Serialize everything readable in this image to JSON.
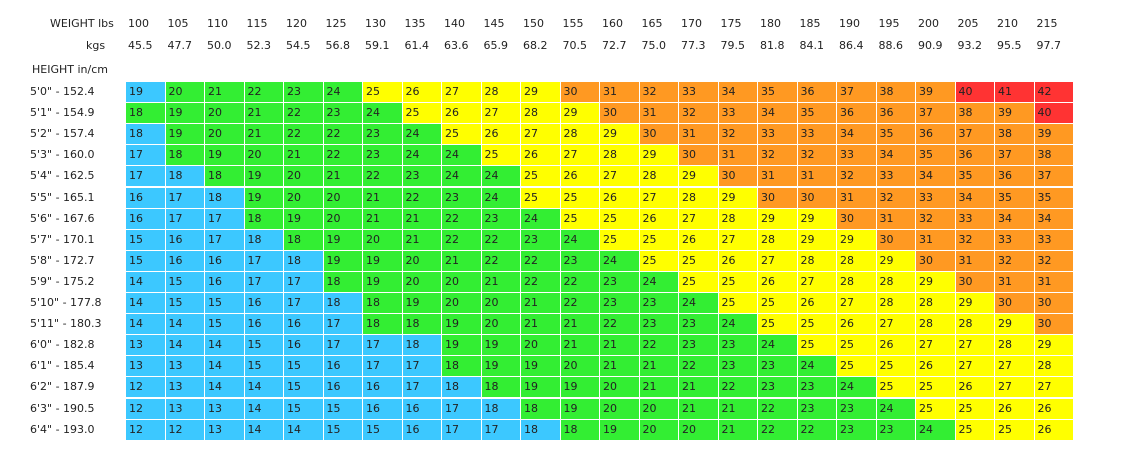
{
  "header": {
    "weight_label": "WEIGHT lbs",
    "kgs_label": "kgs",
    "height_label": "HEIGHT in/cm"
  },
  "colors": {
    "blue": "#3cc8ff",
    "green": "#33ee33",
    "yellow": "#ffff00",
    "orange": "#ff9922",
    "red": "#ff3333"
  },
  "chart_data": {
    "type": "table",
    "lbs": [
      "100",
      "105",
      "110",
      "115",
      "120",
      "125",
      "130",
      "135",
      "140",
      "145",
      "150",
      "155",
      "160",
      "165",
      "170",
      "175",
      "180",
      "185",
      "190",
      "195",
      "200",
      "205",
      "210",
      "215"
    ],
    "kgs": [
      "45.5",
      "47.7",
      "50.0",
      "52.3",
      "54.5",
      "56.8",
      "59.1",
      "61.4",
      "63.6",
      "65.9",
      "68.2",
      "70.5",
      "72.7",
      "75.0",
      "77.3",
      "79.5",
      "81.8",
      "84.1",
      "86.4",
      "88.6",
      "90.9",
      "93.2",
      "95.5",
      "97.7"
    ],
    "heights": [
      "5'0\" - 152.4",
      "5'1\" - 154.9",
      "5'2\" - 157.4",
      "5'3\" - 160.0",
      "5'4\" - 162.5",
      "5'5\" - 165.1",
      "5'6\" - 167.6",
      "5'7\" - 170.1",
      "5'8\" - 172.7",
      "5'9\" - 175.2",
      "5'10\" - 177.8",
      "5'11\" - 180.3",
      "6'0\" - 182.8",
      "6'1\" - 185.4",
      "6'2\" - 187.9",
      "6'3\" - 190.5",
      "6'4\" - 193.0"
    ],
    "values": [
      [
        19,
        20,
        21,
        22,
        23,
        24,
        25,
        26,
        27,
        28,
        29,
        30,
        31,
        32,
        33,
        34,
        35,
        36,
        37,
        38,
        39,
        40,
        41,
        42
      ],
      [
        18,
        19,
        20,
        21,
        22,
        23,
        24,
        25,
        26,
        27,
        28,
        29,
        30,
        31,
        32,
        33,
        34,
        35,
        36,
        36,
        37,
        38,
        39,
        40
      ],
      [
        18,
        19,
        20,
        21,
        22,
        22,
        23,
        24,
        25,
        26,
        27,
        28,
        29,
        30,
        31,
        32,
        33,
        33,
        34,
        35,
        36,
        37,
        38,
        39
      ],
      [
        17,
        18,
        19,
        20,
        21,
        22,
        23,
        24,
        24,
        25,
        26,
        27,
        28,
        29,
        30,
        31,
        32,
        32,
        33,
        34,
        35,
        36,
        37,
        38
      ],
      [
        17,
        18,
        18,
        19,
        20,
        21,
        22,
        23,
        24,
        24,
        25,
        26,
        27,
        28,
        29,
        30,
        31,
        31,
        32,
        33,
        34,
        35,
        36,
        37
      ],
      [
        16,
        17,
        18,
        19,
        20,
        20,
        21,
        22,
        23,
        24,
        25,
        25,
        26,
        27,
        28,
        29,
        30,
        30,
        31,
        32,
        33,
        34,
        35,
        35
      ],
      [
        16,
        17,
        17,
        18,
        19,
        20,
        21,
        21,
        22,
        23,
        24,
        25,
        25,
        26,
        27,
        28,
        29,
        29,
        30,
        31,
        32,
        33,
        34,
        34
      ],
      [
        15,
        16,
        17,
        18,
        18,
        19,
        20,
        21,
        22,
        22,
        23,
        24,
        25,
        25,
        26,
        27,
        28,
        29,
        29,
        30,
        31,
        32,
        33,
        33
      ],
      [
        15,
        16,
        16,
        17,
        18,
        19,
        19,
        20,
        21,
        22,
        22,
        23,
        24,
        25,
        25,
        26,
        27,
        28,
        28,
        29,
        30,
        31,
        32,
        32
      ],
      [
        14,
        15,
        16,
        17,
        17,
        18,
        19,
        20,
        20,
        21,
        22,
        22,
        23,
        24,
        25,
        25,
        26,
        27,
        28,
        28,
        29,
        30,
        31,
        31
      ],
      [
        14,
        15,
        15,
        16,
        17,
        18,
        18,
        19,
        20,
        20,
        21,
        22,
        23,
        23,
        24,
        25,
        25,
        26,
        27,
        28,
        28,
        29,
        30,
        30
      ],
      [
        14,
        14,
        15,
        16,
        16,
        17,
        18,
        18,
        19,
        20,
        21,
        21,
        22,
        23,
        23,
        24,
        25,
        25,
        26,
        27,
        28,
        28,
        29,
        30
      ],
      [
        13,
        14,
        14,
        15,
        16,
        17,
        17,
        18,
        19,
        19,
        20,
        21,
        21,
        22,
        23,
        23,
        24,
        25,
        25,
        26,
        27,
        27,
        28,
        29
      ],
      [
        13,
        13,
        14,
        15,
        15,
        16,
        17,
        17,
        18,
        19,
        19,
        20,
        21,
        21,
        22,
        23,
        23,
        24,
        25,
        25,
        26,
        27,
        27,
        28
      ],
      [
        12,
        13,
        14,
        14,
        15,
        16,
        16,
        17,
        18,
        18,
        19,
        19,
        20,
        21,
        21,
        22,
        23,
        23,
        24,
        25,
        25,
        26,
        27,
        27
      ],
      [
        12,
        13,
        13,
        14,
        15,
        15,
        16,
        16,
        17,
        18,
        18,
        19,
        20,
        20,
        21,
        21,
        22,
        23,
        23,
        24,
        25,
        25,
        26,
        26
      ],
      [
        12,
        12,
        13,
        14,
        14,
        15,
        15,
        16,
        17,
        17,
        18,
        18,
        19,
        20,
        20,
        21,
        22,
        22,
        23,
        23,
        24,
        25,
        25,
        26
      ]
    ],
    "color_classes": [
      [
        "blue",
        "green",
        "green",
        "green",
        "green",
        "green",
        "yellow",
        "yellow",
        "yellow",
        "yellow",
        "yellow",
        "orange",
        "orange",
        "orange",
        "orange",
        "orange",
        "orange",
        "orange",
        "orange",
        "orange",
        "orange",
        "red",
        "red",
        "red"
      ],
      [
        "green",
        "green",
        "green",
        "green",
        "green",
        "green",
        "green",
        "yellow",
        "yellow",
        "yellow",
        "yellow",
        "yellow",
        "orange",
        "orange",
        "orange",
        "orange",
        "orange",
        "orange",
        "orange",
        "orange",
        "orange",
        "orange",
        "orange",
        "red"
      ],
      [
        "blue",
        "green",
        "green",
        "green",
        "green",
        "green",
        "green",
        "green",
        "yellow",
        "yellow",
        "yellow",
        "yellow",
        "yellow",
        "orange",
        "orange",
        "orange",
        "orange",
        "orange",
        "orange",
        "orange",
        "orange",
        "orange",
        "orange",
        "orange"
      ],
      [
        "blue",
        "green",
        "green",
        "green",
        "green",
        "green",
        "green",
        "green",
        "green",
        "yellow",
        "yellow",
        "yellow",
        "yellow",
        "yellow",
        "orange",
        "orange",
        "orange",
        "orange",
        "orange",
        "orange",
        "orange",
        "orange",
        "orange",
        "orange"
      ],
      [
        "blue",
        "blue",
        "green",
        "green",
        "green",
        "green",
        "green",
        "green",
        "green",
        "green",
        "yellow",
        "yellow",
        "yellow",
        "yellow",
        "yellow",
        "orange",
        "orange",
        "orange",
        "orange",
        "orange",
        "orange",
        "orange",
        "orange",
        "orange"
      ],
      [
        "blue",
        "blue",
        "blue",
        "green",
        "green",
        "green",
        "green",
        "green",
        "green",
        "green",
        "yellow",
        "yellow",
        "yellow",
        "yellow",
        "yellow",
        "yellow",
        "orange",
        "orange",
        "orange",
        "orange",
        "orange",
        "orange",
        "orange",
        "orange"
      ],
      [
        "blue",
        "blue",
        "blue",
        "green",
        "green",
        "green",
        "green",
        "green",
        "green",
        "green",
        "green",
        "yellow",
        "yellow",
        "yellow",
        "yellow",
        "yellow",
        "yellow",
        "yellow",
        "orange",
        "orange",
        "orange",
        "orange",
        "orange",
        "orange"
      ],
      [
        "blue",
        "blue",
        "blue",
        "blue",
        "green",
        "green",
        "green",
        "green",
        "green",
        "green",
        "green",
        "green",
        "yellow",
        "yellow",
        "yellow",
        "yellow",
        "yellow",
        "yellow",
        "yellow",
        "orange",
        "orange",
        "orange",
        "orange",
        "orange"
      ],
      [
        "blue",
        "blue",
        "blue",
        "blue",
        "blue",
        "green",
        "green",
        "green",
        "green",
        "green",
        "green",
        "green",
        "green",
        "yellow",
        "yellow",
        "yellow",
        "yellow",
        "yellow",
        "yellow",
        "yellow",
        "orange",
        "orange",
        "orange",
        "orange"
      ],
      [
        "blue",
        "blue",
        "blue",
        "blue",
        "blue",
        "green",
        "green",
        "green",
        "green",
        "green",
        "green",
        "green",
        "green",
        "green",
        "yellow",
        "yellow",
        "yellow",
        "yellow",
        "yellow",
        "yellow",
        "yellow",
        "orange",
        "orange",
        "orange"
      ],
      [
        "blue",
        "blue",
        "blue",
        "blue",
        "blue",
        "blue",
        "green",
        "green",
        "green",
        "green",
        "green",
        "green",
        "green",
        "green",
        "green",
        "yellow",
        "yellow",
        "yellow",
        "yellow",
        "yellow",
        "yellow",
        "yellow",
        "orange",
        "orange"
      ],
      [
        "blue",
        "blue",
        "blue",
        "blue",
        "blue",
        "blue",
        "green",
        "green",
        "green",
        "green",
        "green",
        "green",
        "green",
        "green",
        "green",
        "green",
        "yellow",
        "yellow",
        "yellow",
        "yellow",
        "yellow",
        "yellow",
        "yellow",
        "orange"
      ],
      [
        "blue",
        "blue",
        "blue",
        "blue",
        "blue",
        "blue",
        "blue",
        "blue",
        "green",
        "green",
        "green",
        "green",
        "green",
        "green",
        "green",
        "green",
        "green",
        "yellow",
        "yellow",
        "yellow",
        "yellow",
        "yellow",
        "yellow",
        "yellow"
      ],
      [
        "blue",
        "blue",
        "blue",
        "blue",
        "blue",
        "blue",
        "blue",
        "blue",
        "green",
        "green",
        "green",
        "green",
        "green",
        "green",
        "green",
        "green",
        "green",
        "green",
        "yellow",
        "yellow",
        "yellow",
        "yellow",
        "yellow",
        "yellow"
      ],
      [
        "blue",
        "blue",
        "blue",
        "blue",
        "blue",
        "blue",
        "blue",
        "blue",
        "blue",
        "green",
        "green",
        "green",
        "green",
        "green",
        "green",
        "green",
        "green",
        "green",
        "green",
        "yellow",
        "yellow",
        "yellow",
        "yellow",
        "yellow"
      ],
      [
        "blue",
        "blue",
        "blue",
        "blue",
        "blue",
        "blue",
        "blue",
        "blue",
        "blue",
        "blue",
        "green",
        "green",
        "green",
        "green",
        "green",
        "green",
        "green",
        "green",
        "green",
        "green",
        "yellow",
        "yellow",
        "yellow",
        "yellow"
      ],
      [
        "blue",
        "blue",
        "blue",
        "blue",
        "blue",
        "blue",
        "blue",
        "blue",
        "blue",
        "blue",
        "blue",
        "green",
        "green",
        "green",
        "green",
        "green",
        "green",
        "green",
        "green",
        "green",
        "green",
        "yellow",
        "yellow",
        "yellow"
      ]
    ]
  }
}
